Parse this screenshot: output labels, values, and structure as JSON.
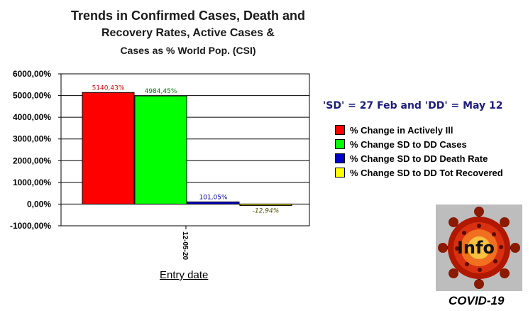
{
  "title": {
    "line1": "Trends in Confirmed Cases, Death and",
    "line2": "Recovery Rates, Active Cases &",
    "line3": "Cases as % World Pop. (CSI)"
  },
  "note": "'SD' = 27 Feb and 'DD' = May 12",
  "logo": {
    "text": "Info",
    "caption": "COVID-19"
  },
  "colors": {
    "red": "#ff0000",
    "green": "#00ff00",
    "blue": "#0000c8",
    "yellow": "#ffff00"
  },
  "chart_data": {
    "type": "bar",
    "xlabel": "Entry date",
    "categories": [
      "12-05-20"
    ],
    "ylim": [
      -1000,
      6000
    ],
    "yticks": [
      "6000,00%",
      "5000,00%",
      "4000,00%",
      "3000,00%",
      "2000,00%",
      "1000,00%",
      "0,00%",
      "-1000,00%"
    ],
    "ytick_values": [
      6000,
      5000,
      4000,
      3000,
      2000,
      1000,
      0,
      -1000
    ],
    "grid": true,
    "legend_position": "right",
    "series": [
      {
        "name": "% Change in Actively Ill",
        "values": [
          5140.43
        ],
        "label": "5140,43%",
        "color": "#ff0000",
        "label_color": "#d00000"
      },
      {
        "name": "% Change SD to DD Cases",
        "values": [
          4984.45
        ],
        "label": "4984,45%",
        "color": "#00ff00",
        "label_color": "#007a00"
      },
      {
        "name": "% Change SD to DD Death Rate",
        "values": [
          101.05
        ],
        "label": "101,05%",
        "color": "#0000c8",
        "label_color": "#0000a0"
      },
      {
        "name": "% Change SD to DD Tot Recovered",
        "values": [
          -12.94
        ],
        "label": "-12,94%",
        "color": "#ffff00",
        "label_color": "#555500"
      }
    ]
  }
}
